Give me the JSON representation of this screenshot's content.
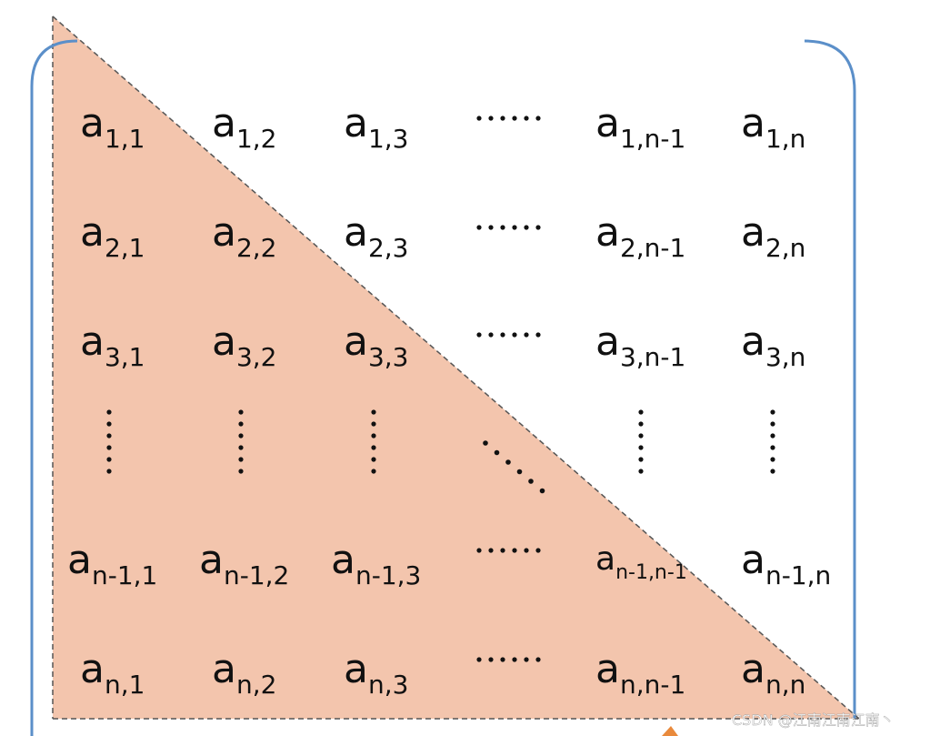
{
  "matrix": {
    "symbol": "a",
    "rows": [
      [
        "1,1",
        "1,2",
        "1,3",
        "1,n-1",
        "1,n"
      ],
      [
        "2,1",
        "2,2",
        "2,3",
        "2,n-1",
        "2,n"
      ],
      [
        "3,1",
        "3,2",
        "3,3",
        "3,n-1",
        "3,n"
      ],
      [
        "n-1,1",
        "n-1,2",
        "n-1,3",
        "n-1,n-1",
        "n-1,n"
      ],
      [
        "n,1",
        "n,2",
        "n,3",
        "n,n-1",
        "n,n"
      ]
    ]
  },
  "watermark": "CSDN @江南江南江南丶"
}
